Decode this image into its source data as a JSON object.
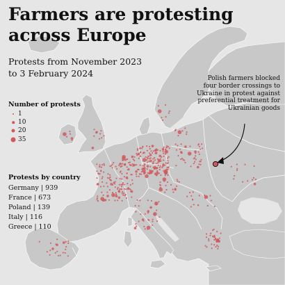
{
  "title": "Farmers are protesting across Europe",
  "subtitle": "Protests from November 2023 to 3 February 2024",
  "legend": {
    "title": "Number of protests",
    "items": [
      {
        "label": "1",
        "value": 1
      },
      {
        "label": "10",
        "value": 10
      },
      {
        "label": "20",
        "value": 20
      },
      {
        "label": "35",
        "value": 35
      }
    ]
  },
  "by_country": {
    "title": "Protests by country",
    "rows": [
      {
        "text": "Germany | 939",
        "country": "Germany",
        "count": 939
      },
      {
        "text": "France | 673",
        "country": "France",
        "count": 673
      },
      {
        "text": "Poland | 139",
        "country": "Poland",
        "count": 139
      },
      {
        "text": "Italy | 116",
        "country": "Italy",
        "count": 116
      },
      {
        "text": "Greece | 110",
        "country": "Greece",
        "count": 110
      }
    ]
  },
  "annotation": "Polish farmers blocked four border crossings to Ukraine in protest against preferential treatment for Ukrainian goods",
  "colors": {
    "sea": "#e6e6e6",
    "land": "#c8c8c8",
    "borders": "#ffffff",
    "protest_dot": "#cf5a5e",
    "text": "#111111"
  }
}
